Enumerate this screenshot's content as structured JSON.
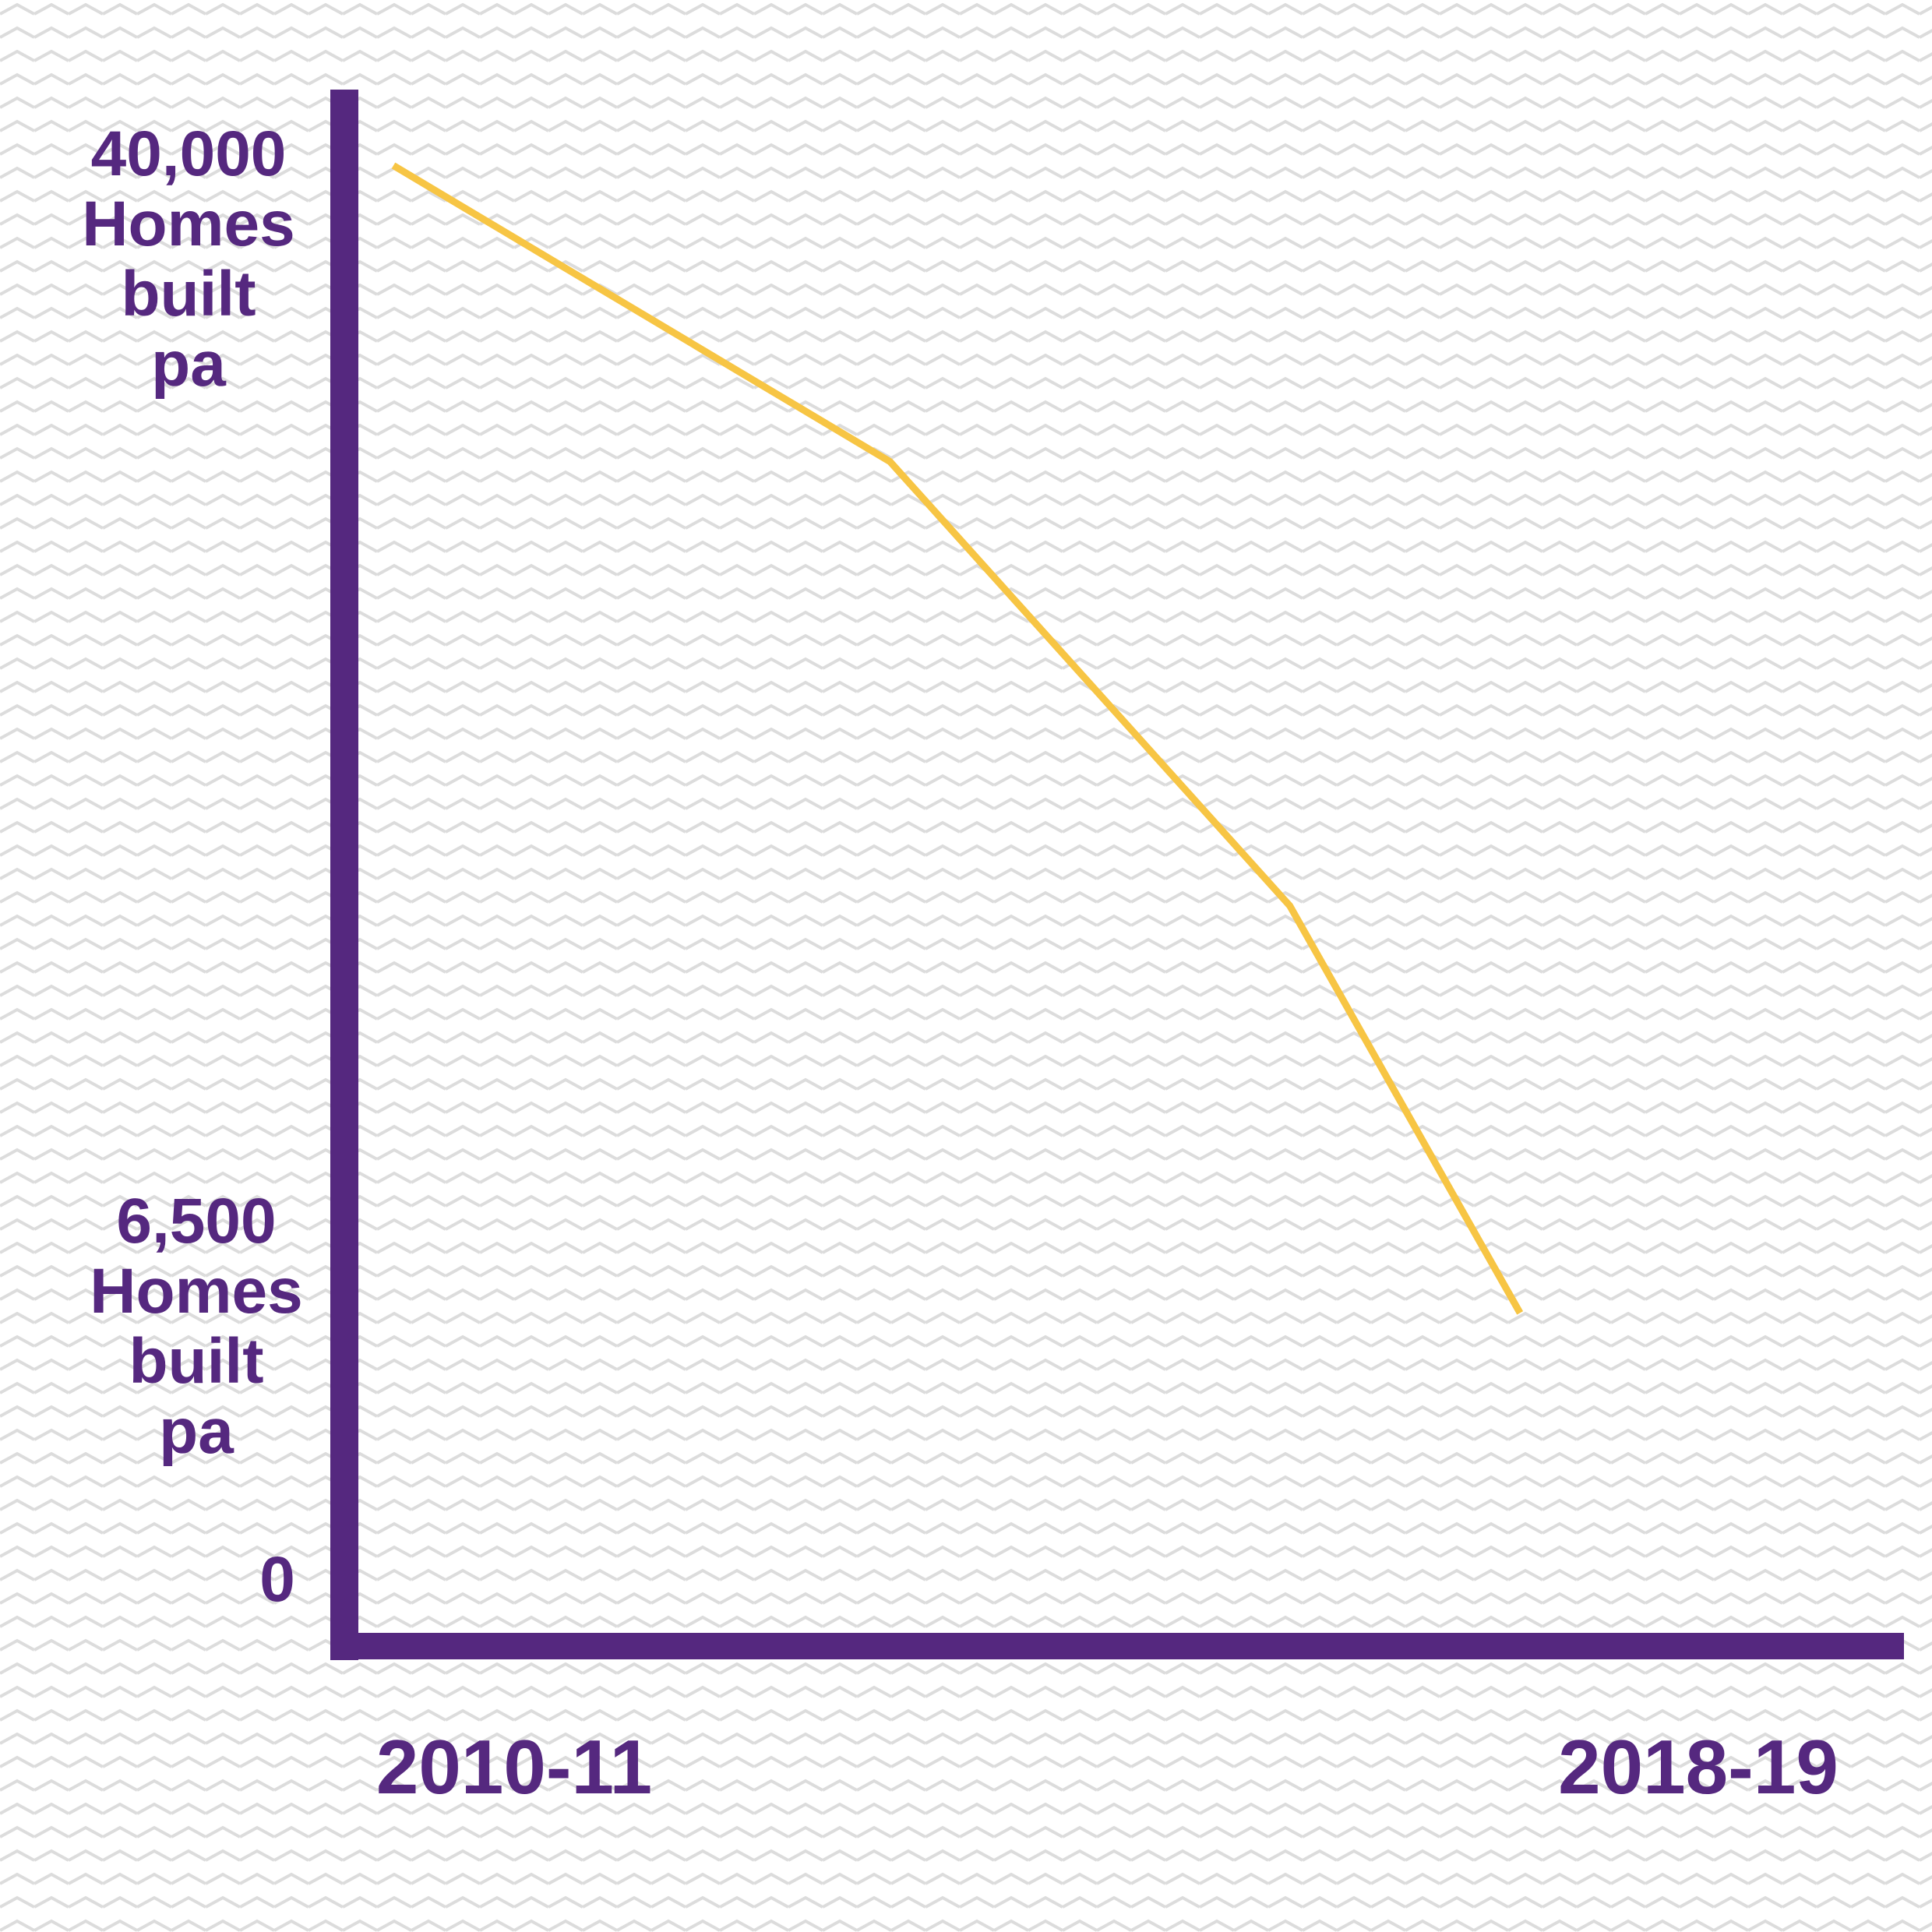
{
  "chart_data": {
    "type": "line",
    "x_ticks": [
      "2010-11",
      "2018-19"
    ],
    "y_tick_labels": [
      {
        "value": 40000,
        "lines": [
          "40,000",
          "Homes",
          "built",
          "pa"
        ]
      },
      {
        "value": 6500,
        "lines": [
          "6,500",
          "Homes",
          "built",
          "pa"
        ]
      },
      {
        "value": 0,
        "lines": [
          "0"
        ]
      }
    ],
    "series": [
      {
        "points": [
          {
            "x": 0.0,
            "y": 40000
          },
          {
            "x": 0.41,
            "y": 32000
          },
          {
            "x": 0.74,
            "y": 20000
          },
          {
            "x": 0.93,
            "y": 9000
          }
        ]
      }
    ],
    "ylim": [
      0,
      41000
    ],
    "grid": false,
    "legend": "none",
    "colors": {
      "axis": "#55287f",
      "line": "#f7c544",
      "text": "#55287f",
      "background_pattern": "#dcdcdc"
    }
  }
}
